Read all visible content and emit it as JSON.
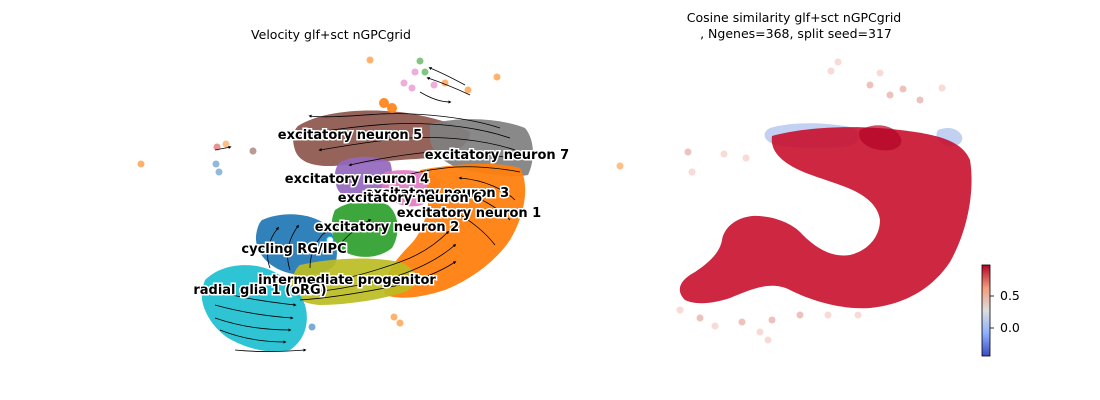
{
  "chart_data": [
    {
      "type": "scatter",
      "subtype": "umap-velocity-stream",
      "title": "Velocity glf+sct nGPCgrid",
      "axes_visible": false,
      "legend": "on data",
      "clusters": [
        {
          "name": "excitatory neuron 5",
          "color": "#8c564b"
        },
        {
          "name": "excitatory neuron 7",
          "color": "#7f7f7f"
        },
        {
          "name": "excitatory neuron 4",
          "color": "#9467bd"
        },
        {
          "name": "excitatory neuron 3",
          "color": "#e377c2"
        },
        {
          "name": "excitatory neuron 6",
          "color": "#ff7f0e"
        },
        {
          "name": "excitatory neuron 1",
          "color": "#ff7f0e"
        },
        {
          "name": "excitatory neuron 2",
          "color": "#2ca02c"
        },
        {
          "name": "cycling RG/IPC",
          "color": "#1f77b4"
        },
        {
          "name": "intermediate progenitor",
          "color": "#bcbd22"
        },
        {
          "name": "radial glia 1 (oRG)",
          "color": "#17becf"
        }
      ]
    },
    {
      "type": "scatter",
      "subtype": "umap-colored-by-value",
      "title": "Cosine similarity glf+sct nGPCgrid\n, Ngenes=368, split seed=317",
      "axes_visible": false,
      "colorbar": {
        "colormap": "coolwarm",
        "ticks": [
          "0.5",
          "0.0"
        ],
        "tick_values": [
          0.5,
          0.0
        ],
        "range": [
          -0.4,
          0.98
        ],
        "dominant_value": 0.95,
        "location": "lower-right"
      }
    }
  ]
}
